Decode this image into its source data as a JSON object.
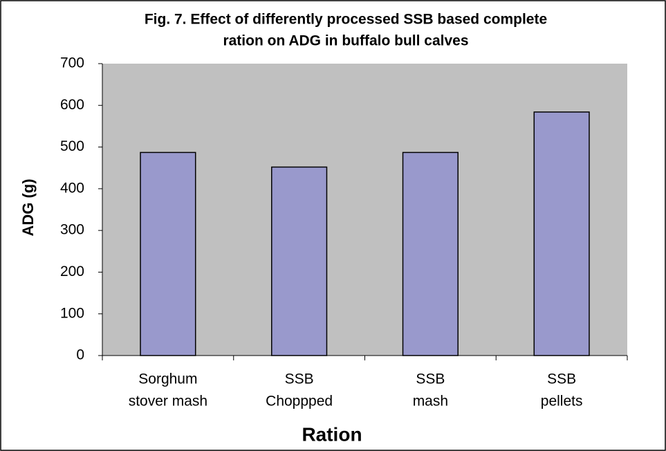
{
  "chart_data": {
    "type": "bar",
    "title": [
      "Fig. 7. Effect of differently processed SSB based complete",
      "ration on ADG in buffalo bull calves"
    ],
    "categories": [
      [
        "Sorghum",
        "stover mash"
      ],
      [
        "SSB",
        "Choppped"
      ],
      [
        "SSB",
        "mash"
      ],
      [
        "SSB",
        "pellets"
      ]
    ],
    "values": [
      487,
      452,
      487,
      584
    ],
    "color": "#9999cc",
    "ylim": [
      0,
      700
    ],
    "yticks": [
      0,
      100,
      200,
      300,
      400,
      500,
      600,
      700
    ],
    "ylabel": "ADG (g)",
    "xlabel": "Ration",
    "grid": false
  }
}
